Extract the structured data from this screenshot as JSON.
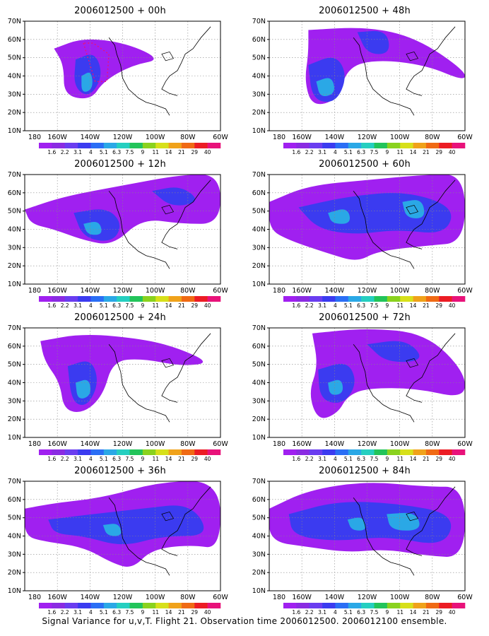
{
  "colors": {
    "palette": [
      "#a020f0",
      "#8a2be2",
      "#6a3df0",
      "#3b3bf0",
      "#2a6ef5",
      "#2aa8e6",
      "#25cfc0",
      "#22c45a",
      "#8ad21e",
      "#d7e01a",
      "#f0a21a",
      "#f06a14",
      "#ec1c24",
      "#e8127a"
    ],
    "land_line": "#000000",
    "grid_line": "#888888",
    "outline_marks": "#e8127a"
  },
  "axes": {
    "y_ticks": [
      "70N",
      "60N",
      "50N",
      "40N",
      "30N",
      "20N",
      "10N"
    ],
    "x_ticks": [
      "180",
      "160W",
      "140W",
      "120W",
      "100W",
      "80W",
      "60W"
    ]
  },
  "colorbar": {
    "labels": [
      "1.6",
      "2.2",
      "3.1",
      "4",
      "5.1",
      "6.3",
      "7.5",
      "9",
      "11",
      "14",
      "21",
      "29",
      "40"
    ]
  },
  "panels": [
    {
      "id": "p00",
      "title_date": "2006012500",
      "title_sep": " + ",
      "title_hour": "00h",
      "spread": 0
    },
    {
      "id": "p48",
      "title_date": "2006012500",
      "title_sep": " + ",
      "title_hour": "48h",
      "spread": 4
    },
    {
      "id": "p12",
      "title_date": "2006012500",
      "title_sep": " + ",
      "title_hour": "12h",
      "spread": 1
    },
    {
      "id": "p60",
      "title_date": "2006012500",
      "title_sep": " + ",
      "title_hour": "60h",
      "spread": 5
    },
    {
      "id": "p24",
      "title_date": "2006012500",
      "title_sep": " + ",
      "title_hour": "24h",
      "spread": 2
    },
    {
      "id": "p72",
      "title_date": "2006012500",
      "title_sep": " + ",
      "title_hour": "72h",
      "spread": 6
    },
    {
      "id": "p36",
      "title_date": "2006012500",
      "title_sep": " + ",
      "title_hour": "36h",
      "spread": 3
    },
    {
      "id": "p84",
      "title_date": "2006012500",
      "title_sep": " + ",
      "title_hour": "84h",
      "spread": 7
    }
  ],
  "caption": "Signal Variance for u,v,T. Flight 21. Observation time 2006012500. 2006012100 ensemble."
}
